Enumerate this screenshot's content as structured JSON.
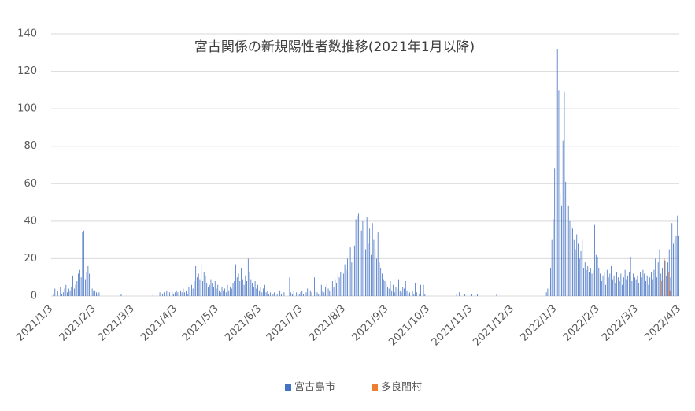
{
  "chart_data": {
    "type": "bar",
    "title": "宮古関係の新規陽性者数推移(2021年1月以降)",
    "categories": [
      "2021/1/3",
      null,
      null,
      null,
      null,
      null,
      null,
      null,
      null,
      null,
      null,
      null,
      null,
      null,
      null,
      null,
      null,
      null,
      null,
      null,
      null,
      null,
      null,
      null,
      null,
      null,
      null,
      null,
      null,
      null,
      null,
      "2021/2/3",
      null,
      null,
      null,
      null,
      null,
      null,
      null,
      null,
      null,
      null,
      null,
      null,
      null,
      null,
      null,
      null,
      null,
      null,
      null,
      null,
      null,
      null,
      null,
      null,
      null,
      null,
      null,
      "2021/3/3",
      null,
      null,
      null,
      null,
      null,
      null,
      null,
      null,
      null,
      null,
      null,
      null,
      null,
      null,
      null,
      null,
      null,
      null,
      null,
      null,
      null,
      null,
      null,
      null,
      null,
      null,
      null,
      null,
      null,
      null,
      "2021/4/3",
      null,
      null,
      null,
      null,
      null,
      null,
      null,
      null,
      null,
      null,
      null,
      null,
      null,
      null,
      null,
      null,
      null,
      null,
      null,
      null,
      null,
      null,
      null,
      null,
      null,
      null,
      null,
      null,
      null,
      "2021/5/3",
      null,
      null,
      null,
      null,
      null,
      null,
      null,
      null,
      null,
      null,
      null,
      null,
      null,
      null,
      null,
      null,
      null,
      null,
      null,
      null,
      null,
      null,
      null,
      null,
      null,
      null,
      null,
      null,
      null,
      null,
      "2021/6/3",
      null,
      null,
      null,
      null,
      null,
      null,
      null,
      null,
      null,
      null,
      null,
      null,
      null,
      null,
      null,
      null,
      null,
      null,
      null,
      null,
      null,
      null,
      null,
      null,
      null,
      null,
      null,
      null,
      null,
      "2021/7/3",
      null,
      null,
      null,
      null,
      null,
      null,
      null,
      null,
      null,
      null,
      null,
      null,
      null,
      null,
      null,
      null,
      null,
      null,
      null,
      null,
      null,
      null,
      null,
      null,
      null,
      null,
      null,
      null,
      null,
      null,
      "2021/8/3",
      null,
      null,
      null,
      null,
      null,
      null,
      null,
      null,
      null,
      null,
      null,
      null,
      null,
      null,
      null,
      null,
      null,
      null,
      null,
      null,
      null,
      null,
      null,
      null,
      null,
      null,
      null,
      null,
      null,
      null,
      "2021/9/3",
      null,
      null,
      null,
      null,
      null,
      null,
      null,
      null,
      null,
      null,
      null,
      null,
      null,
      null,
      null,
      null,
      null,
      null,
      null,
      null,
      null,
      null,
      null,
      null,
      null,
      null,
      null,
      null,
      null,
      "2021/10/3",
      null,
      null,
      null,
      null,
      null,
      null,
      null,
      null,
      null,
      null,
      null,
      null,
      null,
      null,
      null,
      null,
      null,
      null,
      null,
      null,
      null,
      null,
      null,
      null,
      null,
      null,
      null,
      null,
      null,
      null,
      "2021/11/3",
      null,
      null,
      null,
      null,
      null,
      null,
      null,
      null,
      null,
      null,
      null,
      null,
      null,
      null,
      null,
      null,
      null,
      null,
      null,
      null,
      null,
      null,
      null,
      null,
      null,
      null,
      null,
      null,
      null,
      "2021/12/3",
      null,
      null,
      null,
      null,
      null,
      null,
      null,
      null,
      null,
      null,
      null,
      null,
      null,
      null,
      null,
      null,
      null,
      null,
      null,
      null,
      null,
      null,
      null,
      null,
      null,
      null,
      null,
      null,
      null,
      null,
      "2022/1/3",
      null,
      null,
      null,
      null,
      null,
      null,
      null,
      null,
      null,
      null,
      null,
      null,
      null,
      null,
      null,
      null,
      null,
      null,
      null,
      null,
      null,
      null,
      null,
      null,
      null,
      null,
      null,
      null,
      null,
      null,
      "2022/2/3",
      null,
      null,
      null,
      null,
      null,
      null,
      null,
      null,
      null,
      null,
      null,
      null,
      null,
      null,
      null,
      null,
      null,
      null,
      null,
      null,
      null,
      null,
      null,
      null,
      null,
      null,
      null,
      "2022/3/3",
      null,
      null,
      null,
      null,
      null,
      null,
      null,
      null,
      null,
      null,
      null,
      null,
      null,
      null,
      null,
      null,
      null,
      null,
      null,
      null,
      null,
      null,
      null,
      null,
      null,
      null,
      null,
      null,
      null,
      null,
      "2022/4/3"
    ],
    "series": [
      {
        "name": "宮古島市",
        "color": "#4472c4",
        "values": [
          0,
          0,
          1,
          4,
          0,
          3,
          0,
          5,
          1,
          2,
          4,
          6,
          2,
          4,
          3,
          5,
          11,
          4,
          6,
          8,
          12,
          14,
          10,
          34,
          35,
          9,
          13,
          16,
          12,
          8,
          4,
          3,
          3,
          2,
          1,
          2,
          0,
          1,
          0,
          0,
          0,
          0,
          0,
          0,
          0,
          0,
          0,
          0,
          0,
          0,
          0,
          1,
          0,
          0,
          0,
          0,
          0,
          0,
          0,
          0,
          0,
          0,
          0,
          0,
          0,
          0,
          0,
          0,
          0,
          0,
          0,
          0,
          0,
          0,
          1,
          0,
          0,
          1,
          0,
          2,
          0,
          1,
          2,
          0,
          3,
          1,
          2,
          0,
          2,
          1,
          2,
          3,
          2,
          1,
          3,
          2,
          4,
          2,
          3,
          1,
          5,
          3,
          6,
          4,
          8,
          16,
          10,
          12,
          9,
          17,
          8,
          13,
          11,
          7,
          5,
          6,
          9,
          7,
          5,
          8,
          4,
          6,
          3,
          2,
          5,
          3,
          4,
          2,
          6,
          3,
          5,
          4,
          7,
          8,
          17,
          10,
          12,
          8,
          15,
          9,
          6,
          11,
          8,
          20,
          13,
          9,
          7,
          5,
          8,
          4,
          6,
          3,
          5,
          2,
          4,
          6,
          2,
          3,
          1,
          2,
          0,
          1,
          2,
          0,
          1,
          0,
          3,
          1,
          0,
          2,
          0,
          1,
          0,
          10,
          2,
          1,
          3,
          0,
          2,
          4,
          1,
          2,
          3,
          1,
          0,
          2,
          4,
          1,
          3,
          2,
          0,
          10,
          3,
          2,
          1,
          4,
          6,
          3,
          2,
          5,
          7,
          4,
          3,
          6,
          8,
          5,
          9,
          7,
          12,
          10,
          13,
          8,
          12,
          17,
          14,
          20,
          13,
          26,
          18,
          22,
          27,
          41,
          43,
          44,
          42,
          35,
          40,
          30,
          25,
          42,
          28,
          36,
          22,
          39,
          30,
          25,
          20,
          34,
          18,
          15,
          12,
          9,
          8,
          7,
          5,
          4,
          8,
          3,
          6,
          2,
          5,
          4,
          9,
          3,
          2,
          5,
          4,
          8,
          3,
          1,
          2,
          0,
          3,
          1,
          7,
          2,
          0,
          1,
          6,
          0,
          6,
          1,
          0,
          0,
          0,
          0,
          0,
          0,
          0,
          0,
          0,
          0,
          0,
          0,
          0,
          0,
          0,
          0,
          0,
          0,
          0,
          0,
          0,
          0,
          1,
          0,
          2,
          0,
          0,
          0,
          1,
          0,
          0,
          0,
          0,
          1,
          0,
          0,
          0,
          1,
          0,
          0,
          0,
          0,
          0,
          0,
          0,
          0,
          0,
          0,
          0,
          0,
          0,
          1,
          0,
          0,
          0,
          0,
          0,
          0,
          0,
          0,
          0,
          0,
          0,
          0,
          0,
          0,
          0,
          0,
          0,
          0,
          0,
          0,
          0,
          0,
          0,
          0,
          0,
          0,
          0,
          0,
          0,
          0,
          0,
          0,
          0,
          0,
          1,
          2,
          4,
          6,
          15,
          30,
          41,
          68,
          110,
          132,
          110,
          55,
          48,
          83,
          109,
          61,
          45,
          48,
          40,
          37,
          36,
          30,
          25,
          33,
          28,
          20,
          24,
          30,
          15,
          18,
          14,
          16,
          13,
          15,
          12,
          14,
          38,
          22,
          21,
          15,
          12,
          8,
          11,
          13,
          6,
          14,
          10,
          12,
          16,
          9,
          11,
          7,
          13,
          10,
          8,
          12,
          6,
          10,
          14,
          9,
          11,
          13,
          21,
          8,
          12,
          10,
          9,
          11,
          7,
          13,
          10,
          14,
          12,
          8,
          11,
          6,
          10,
          13,
          9,
          14,
          20,
          10,
          18,
          25,
          12,
          15,
          9,
          19,
          11,
          18,
          25,
          10,
          39,
          28,
          30,
          32,
          43,
          32
        ]
      },
      {
        "name": "多良間村",
        "color": "#ed7d31",
        "values": [
          0,
          0,
          0,
          0,
          0,
          0,
          0,
          0,
          0,
          0,
          0,
          0,
          0,
          0,
          0,
          0,
          0,
          0,
          0,
          0,
          0,
          0,
          0,
          0,
          0,
          0,
          0,
          0,
          0,
          0,
          0,
          0,
          0,
          0,
          0,
          0,
          0,
          0,
          0,
          0,
          0,
          0,
          0,
          0,
          0,
          0,
          0,
          0,
          0,
          0,
          0,
          0,
          0,
          0,
          0,
          0,
          0,
          0,
          0,
          0,
          0,
          0,
          0,
          0,
          0,
          0,
          0,
          0,
          0,
          0,
          0,
          0,
          0,
          0,
          0,
          0,
          0,
          0,
          0,
          0,
          0,
          0,
          0,
          0,
          0,
          0,
          0,
          0,
          0,
          0,
          0,
          0,
          0,
          0,
          0,
          0,
          0,
          0,
          0,
          0,
          0,
          0,
          0,
          0,
          0,
          0,
          0,
          0,
          0,
          0,
          0,
          0,
          0,
          0,
          0,
          0,
          0,
          0,
          0,
          0,
          0,
          0,
          0,
          0,
          0,
          0,
          0,
          0,
          0,
          0,
          0,
          0,
          0,
          0,
          0,
          0,
          0,
          0,
          0,
          0,
          0,
          0,
          0,
          0,
          0,
          0,
          0,
          0,
          0,
          0,
          0,
          0,
          0,
          0,
          0,
          0,
          0,
          0,
          0,
          0,
          0,
          0,
          0,
          0,
          0,
          0,
          0,
          0,
          0,
          0,
          0,
          0,
          0,
          0,
          0,
          0,
          0,
          0,
          0,
          0,
          0,
          0,
          0,
          0,
          0,
          0,
          0,
          0,
          0,
          0,
          0,
          0,
          0,
          0,
          0,
          0,
          0,
          0,
          0,
          0,
          0,
          0,
          0,
          0,
          0,
          0,
          0,
          0,
          0,
          0,
          0,
          0,
          0,
          0,
          0,
          0,
          0,
          0,
          0,
          0,
          0,
          0,
          0,
          0,
          0,
          0,
          0,
          0,
          0,
          0,
          0,
          0,
          0,
          0,
          0,
          0,
          0,
          0,
          0,
          0,
          0,
          0,
          0,
          0,
          0,
          0,
          0,
          0,
          0,
          0,
          0,
          0,
          0,
          0,
          0,
          0,
          0,
          0,
          0,
          0,
          0,
          0,
          0,
          0,
          0,
          0,
          0,
          0,
          0,
          0,
          0,
          0,
          0,
          0,
          0,
          0,
          0,
          0,
          0,
          0,
          0,
          0,
          0,
          0,
          0,
          0,
          0,
          0,
          0,
          0,
          0,
          0,
          0,
          0,
          0,
          0,
          0,
          0,
          0,
          0,
          0,
          0,
          0,
          0,
          0,
          0,
          0,
          0,
          0,
          0,
          0,
          0,
          0,
          0,
          0,
          0,
          0,
          0,
          0,
          0,
          0,
          0,
          0,
          0,
          0,
          0,
          0,
          0,
          0,
          0,
          0,
          0,
          0,
          0,
          0,
          0,
          0,
          0,
          0,
          0,
          0,
          0,
          0,
          0,
          0,
          0,
          0,
          0,
          0,
          0,
          0,
          0,
          0,
          0,
          0,
          0,
          0,
          0,
          0,
          0,
          0,
          0,
          0,
          0,
          0,
          0,
          0,
          0,
          0,
          0,
          0,
          0,
          0,
          0,
          0,
          0,
          0,
          0,
          0,
          0,
          0,
          0,
          0,
          0,
          0,
          0,
          0,
          0,
          0,
          0,
          0,
          0,
          0,
          0,
          0,
          0,
          0,
          0,
          0,
          0,
          0,
          0,
          0,
          0,
          0,
          0,
          0,
          0,
          0,
          0,
          0,
          0,
          0,
          0,
          0,
          0,
          0,
          0,
          0,
          0,
          0,
          0,
          0,
          0,
          0,
          0,
          0,
          0,
          0,
          0,
          0,
          0,
          0,
          0,
          0,
          0,
          0,
          0,
          0,
          0,
          0,
          0,
          8,
          0,
          20,
          0,
          26,
          13,
          3,
          0,
          0,
          0,
          0,
          0,
          0,
          0
        ]
      }
    ],
    "ylim": [
      0,
      140
    ],
    "yticks": [
      0,
      20,
      40,
      60,
      80,
      100,
      120,
      140
    ],
    "grid": true,
    "legend": "bottom"
  }
}
